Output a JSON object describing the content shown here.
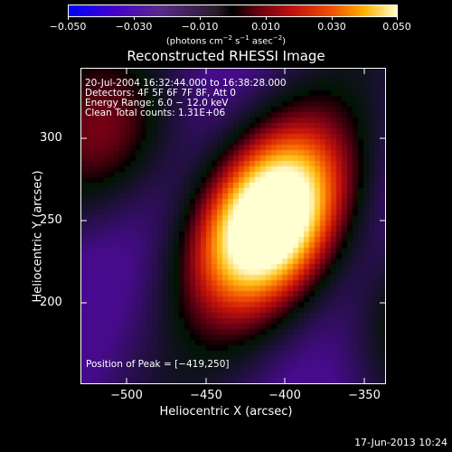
{
  "colorbar": {
    "ticks": [
      "−0.050",
      "−0.030",
      "−0.010",
      "0.010",
      "0.030",
      "0.050"
    ],
    "units": "(photons cm",
    "units_exp1": "−2",
    "units_mid": " s",
    "units_exp2": "−1",
    "units_mid2": " asec",
    "units_exp3": "−2",
    "units_end": ")",
    "range": [
      -0.05,
      0.05
    ]
  },
  "image": {
    "title": "Reconstructed RHESSI Image",
    "info_lines": [
      "20-Jul-2004 16:32:44.000 to 16:38:28.000",
      "Detectors: 4F 5F 6F 7F 8F, Att 0",
      "Energy Range: 6.0 − 12.0 keV",
      "Clean     Total counts: 1.31E+06"
    ],
    "peak_text": "Position of Peak = [−419,250]",
    "peak": [
      -419,
      250
    ],
    "xlabel": "Heliocentric X (arcsec)",
    "ylabel": "Heliocentric Y (arcsec)",
    "xticks": [
      "−500",
      "−450",
      "−400",
      "−350"
    ],
    "yticks": [
      "300",
      "250",
      "200"
    ],
    "xrange": [
      -535,
      -342
    ],
    "yrange": [
      145,
      345
    ]
  },
  "timestamp": "17-Jun-2013 10:24"
}
